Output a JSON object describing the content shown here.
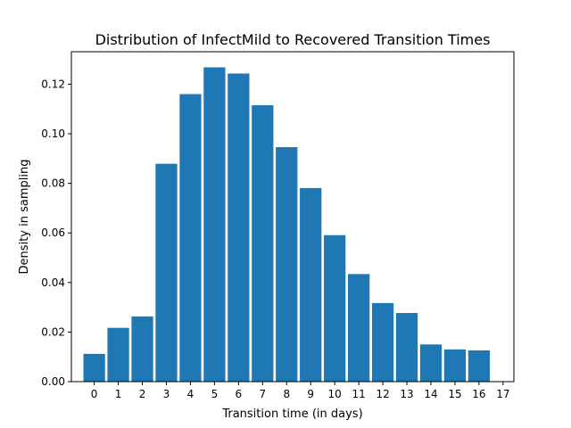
{
  "chart_data": {
    "type": "bar",
    "title": "Distribution of InfectMild to Recovered Transition Times",
    "xlabel": "Transition time (in days)",
    "ylabel": "Density in sampling",
    "x": [
      0,
      1,
      2,
      3,
      4,
      5,
      6,
      7,
      8,
      9,
      10,
      11,
      12,
      13,
      14,
      15,
      16
    ],
    "values": [
      0.0112,
      0.0217,
      0.0263,
      0.0879,
      0.116,
      0.1268,
      0.1243,
      0.1115,
      0.0946,
      0.0781,
      0.0591,
      0.0434,
      0.0317,
      0.0277,
      0.015,
      0.013,
      0.0126
    ],
    "xticks": [
      "0",
      "1",
      "2",
      "3",
      "4",
      "5",
      "6",
      "7",
      "8",
      "9",
      "10",
      "11",
      "12",
      "13",
      "14",
      "15",
      "16",
      "17"
    ],
    "yticks": [
      "0.00",
      "0.02",
      "0.04",
      "0.06",
      "0.08",
      "0.10",
      "0.12"
    ],
    "xlim": [
      -0.95,
      17.45
    ],
    "ylim": [
      0,
      0.1331
    ],
    "grid": false,
    "bar_color": "#1f77b4"
  }
}
